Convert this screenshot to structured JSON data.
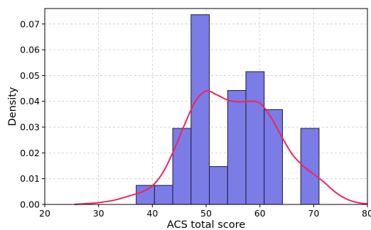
{
  "chart_data": {
    "type": "histogram",
    "title": "",
    "xlabel": "ACS total score",
    "ylabel": "Density",
    "xlim": [
      20,
      80
    ],
    "ylim": [
      0,
      0.076
    ],
    "xticks": [
      20,
      30,
      40,
      50,
      60,
      70,
      80
    ],
    "yticks": [
      0.0,
      0.01,
      0.02,
      0.03,
      0.04,
      0.05,
      0.06,
      0.07
    ],
    "ytick_labels": [
      "0.00",
      "0.01",
      "0.02",
      "0.03",
      "0.04",
      "0.05",
      "0.06",
      "0.07"
    ],
    "grid": true,
    "bins": [
      {
        "x0": 37.0,
        "x1": 40.4,
        "density": 0.0074
      },
      {
        "x0": 40.4,
        "x1": 43.8,
        "density": 0.0074
      },
      {
        "x0": 43.8,
        "x1": 47.2,
        "density": 0.0295
      },
      {
        "x0": 47.2,
        "x1": 50.6,
        "density": 0.0736
      },
      {
        "x0": 50.6,
        "x1": 54.0,
        "density": 0.0147
      },
      {
        "x0": 54.0,
        "x1": 57.4,
        "density": 0.0442
      },
      {
        "x0": 57.4,
        "x1": 60.8,
        "density": 0.0515
      },
      {
        "x0": 60.8,
        "x1": 64.2,
        "density": 0.0368
      },
      {
        "x0": 64.2,
        "x1": 67.6,
        "density": 0.0
      },
      {
        "x0": 67.6,
        "x1": 71.0,
        "density": 0.0295
      }
    ],
    "kde": {
      "x": [
        25.5,
        30,
        33,
        36,
        38,
        40,
        42,
        44,
        46,
        48,
        50,
        52,
        54,
        56,
        58,
        60,
        62,
        64,
        66,
        68,
        70,
        72,
        74,
        76,
        78,
        80
      ],
      "y": [
        0.0,
        0.0007,
        0.0017,
        0.0035,
        0.0048,
        0.0072,
        0.0125,
        0.021,
        0.031,
        0.04,
        0.044,
        0.0425,
        0.0405,
        0.0398,
        0.04,
        0.0393,
        0.034,
        0.0265,
        0.0195,
        0.015,
        0.0118,
        0.0085,
        0.0048,
        0.0022,
        0.0008,
        0.0002
      ]
    },
    "colors": {
      "bar_fill": "#7b7ce6",
      "bar_edge": "#1c1c3a",
      "kde_line": "#f0245e",
      "grid": "#c8c8c8"
    }
  }
}
